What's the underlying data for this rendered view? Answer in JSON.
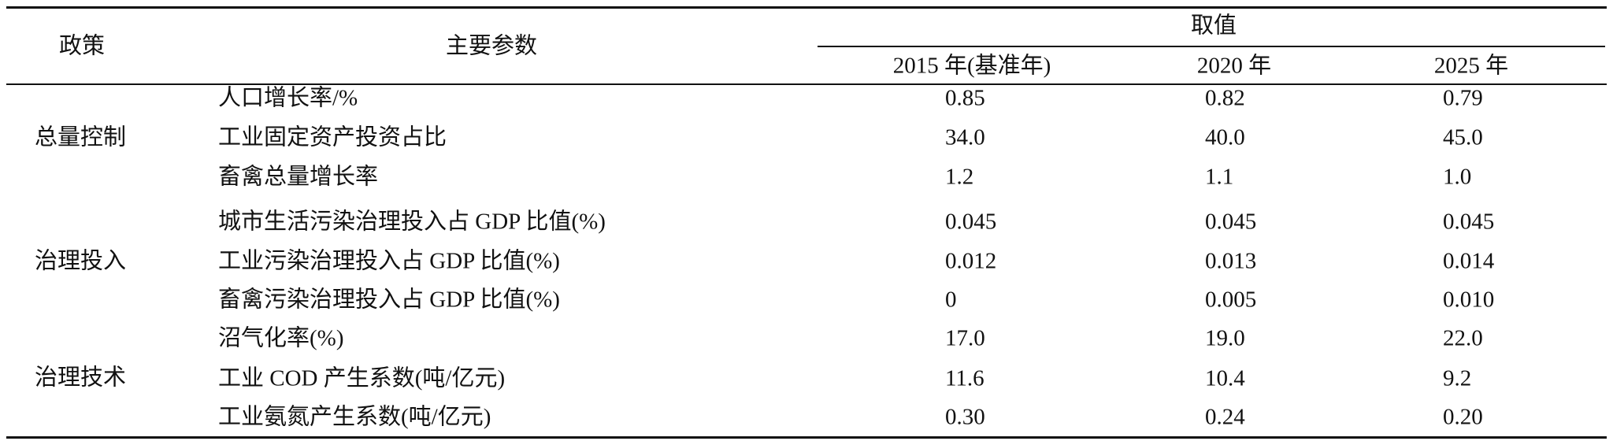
{
  "table": {
    "header": {
      "policy": "政策",
      "params": "主要参数",
      "values": "取值",
      "years": [
        "2015 年(基准年)",
        "2020 年",
        "2025 年"
      ]
    },
    "groups": [
      {
        "policy": "总量控制",
        "rows": [
          {
            "param": "人口增长率/%",
            "values": [
              "0.85",
              "0.82",
              "0.79"
            ]
          },
          {
            "param": "工业固定资产投资占比",
            "values": [
              "34.0",
              "40.0",
              "45.0"
            ]
          },
          {
            "param": "畜禽总量增长率",
            "values": [
              "1.2",
              "1.1",
              "1.0"
            ]
          }
        ]
      },
      {
        "policy": "治理投入",
        "rows": [
          {
            "param": "城市生活污染治理投入占 GDP 比值(%)",
            "values": [
              "0.045",
              "0.045",
              "0.045"
            ]
          },
          {
            "param": "工业污染治理投入占 GDP 比值(%)",
            "values": [
              "0.012",
              "0.013",
              "0.014"
            ]
          },
          {
            "param": "畜禽污染治理投入占 GDP 比值(%)",
            "values": [
              "0",
              "0.005",
              "0.010"
            ]
          }
        ]
      },
      {
        "policy": "治理技术",
        "rows": [
          {
            "param": "沼气化率(%)",
            "values": [
              "17.0",
              "19.0",
              "22.0"
            ]
          },
          {
            "param": "工业 COD 产生系数(吨/亿元)",
            "values": [
              "11.6",
              "10.4",
              "9.2"
            ]
          },
          {
            "param": "工业氨氮产生系数(吨/亿元)",
            "values": [
              "0.30",
              "0.24",
              "0.20"
            ]
          }
        ]
      }
    ]
  }
}
